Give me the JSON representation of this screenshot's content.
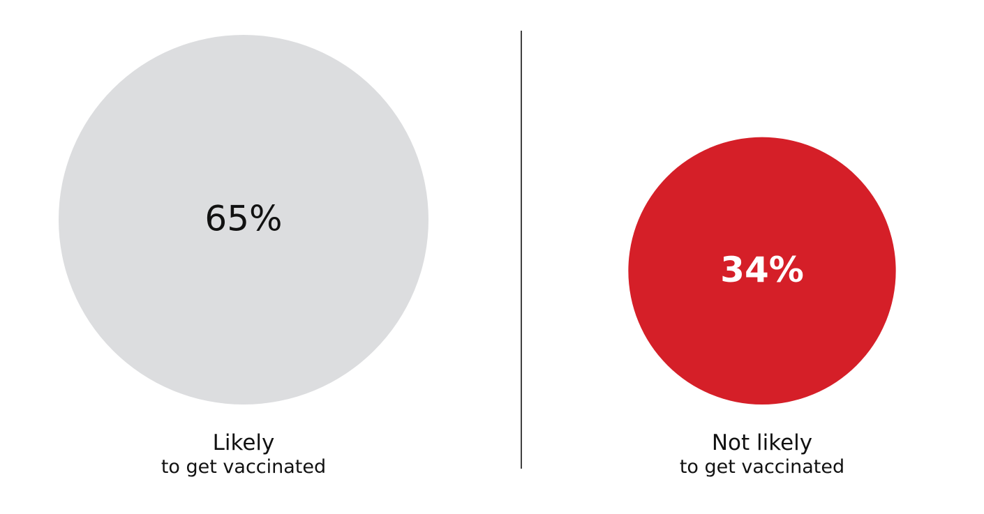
{
  "chart_data": {
    "type": "bubble",
    "categories": [
      "Likely",
      "Not likely"
    ],
    "sublabels": [
      "to get vaccinated",
      "to get vaccinated"
    ],
    "values": [
      65,
      34
    ],
    "value_labels": [
      "65%",
      "34%"
    ],
    "colors": [
      "#dcdddf",
      "#d51f28"
    ],
    "label_colors": [
      "#111111",
      "#ffffff"
    ],
    "label_weights": [
      "normal",
      "bold"
    ],
    "divider": true
  }
}
